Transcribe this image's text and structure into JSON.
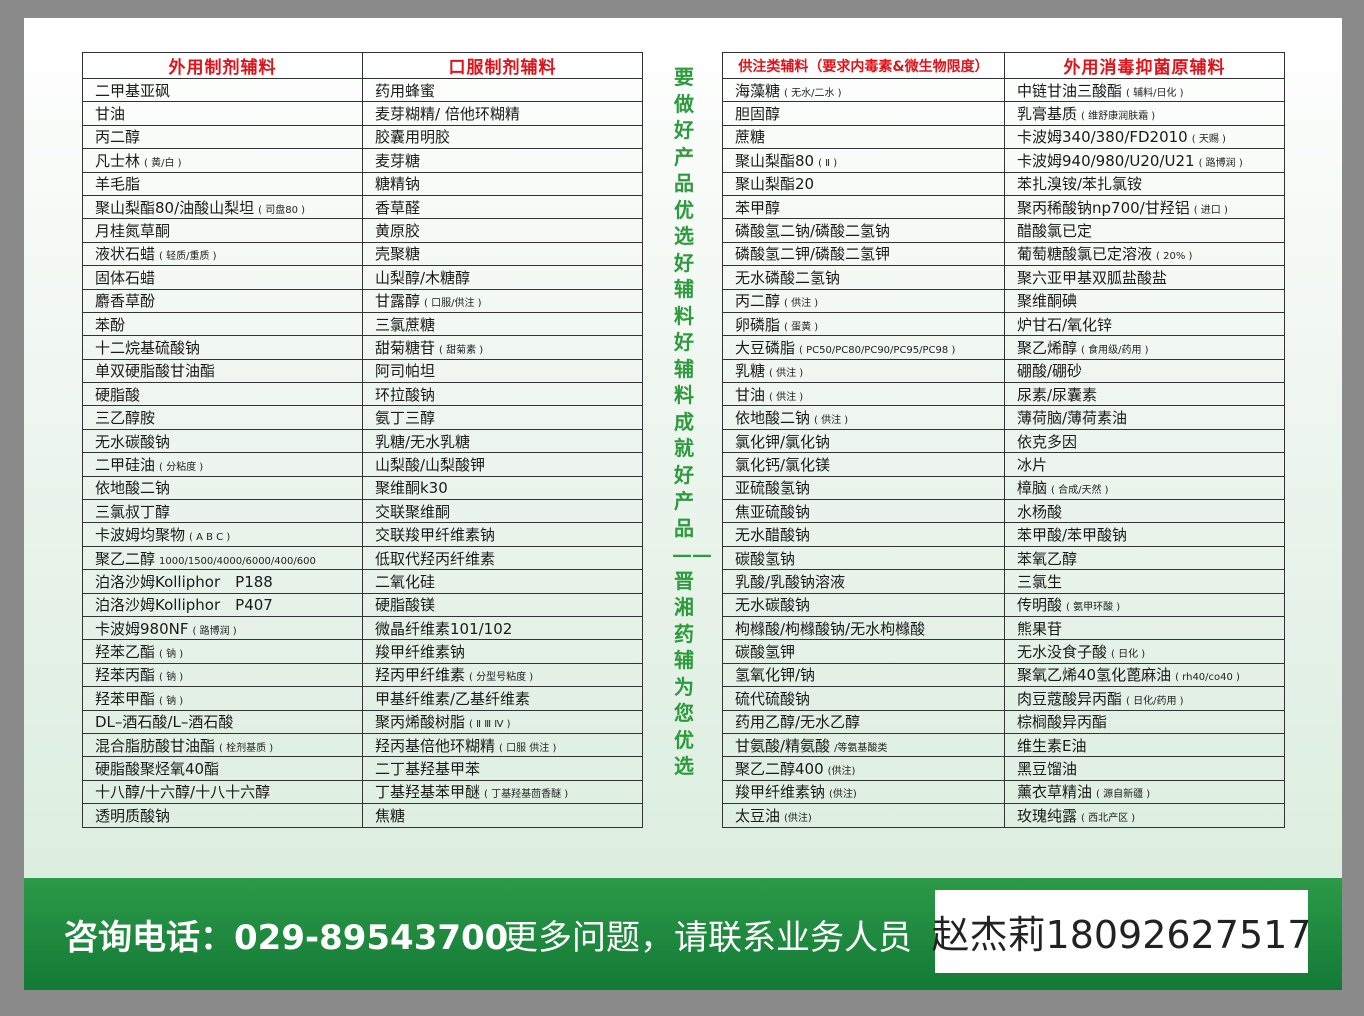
{
  "colors": {
    "header_text": "#e0131a",
    "slogan": "#2e9a3e",
    "footer_bg": "#1a8a3e"
  },
  "left_table": {
    "headers": [
      "外用制剂辅料",
      "口服制剂辅料"
    ],
    "rows": [
      [
        [
          "二甲基亚砜",
          ""
        ],
        [
          "药用蜂蜜",
          ""
        ]
      ],
      [
        [
          "甘油",
          ""
        ],
        [
          "麦芽糊精/ 倍他环糊精",
          ""
        ]
      ],
      [
        [
          "丙二醇",
          ""
        ],
        [
          "胶囊用明胶",
          ""
        ]
      ],
      [
        [
          "凡士林",
          "( 黄/白 )"
        ],
        [
          "麦芽糖",
          ""
        ]
      ],
      [
        [
          "羊毛脂",
          ""
        ],
        [
          "糖精钠",
          ""
        ]
      ],
      [
        [
          "聚山梨酯80/油酸山梨坦",
          "( 司盘80 )"
        ],
        [
          "香草醛",
          ""
        ]
      ],
      [
        [
          "月桂氮草酮",
          ""
        ],
        [
          "黄原胶",
          ""
        ]
      ],
      [
        [
          "液状石蜡",
          "( 轻质/重质 )"
        ],
        [
          "壳聚糖",
          ""
        ]
      ],
      [
        [
          "固体石蜡",
          ""
        ],
        [
          "山梨醇/木糖醇",
          ""
        ]
      ],
      [
        [
          "麝香草酚",
          ""
        ],
        [
          "甘露醇",
          "( 口服/供注 )"
        ]
      ],
      [
        [
          "苯酚",
          ""
        ],
        [
          "三氯蔗糖",
          ""
        ]
      ],
      [
        [
          "十二烷基硫酸钠",
          ""
        ],
        [
          "甜菊糖苷",
          "( 甜菊素 )"
        ]
      ],
      [
        [
          "单双硬脂酸甘油酯",
          ""
        ],
        [
          "阿司帕坦",
          ""
        ]
      ],
      [
        [
          "硬脂酸",
          ""
        ],
        [
          "环拉酸钠",
          ""
        ]
      ],
      [
        [
          "三乙醇胺",
          ""
        ],
        [
          "氨丁三醇",
          ""
        ]
      ],
      [
        [
          "无水碳酸钠",
          ""
        ],
        [
          "乳糖/无水乳糖",
          ""
        ]
      ],
      [
        [
          "二甲硅油",
          "( 分粘度 )"
        ],
        [
          "山梨酸/山梨酸钾",
          ""
        ]
      ],
      [
        [
          "依地酸二钠",
          ""
        ],
        [
          "聚维酮k30",
          ""
        ]
      ],
      [
        [
          "三氯叔丁醇",
          ""
        ],
        [
          "交联聚维酮",
          ""
        ]
      ],
      [
        [
          "卡波姆均聚物",
          "( A B C )"
        ],
        [
          "交联羧甲纤维素钠",
          ""
        ]
      ],
      [
        [
          "聚乙二醇",
          "1000/1500/4000/6000/400/600"
        ],
        [
          "低取代羟丙纤维素",
          ""
        ]
      ],
      [
        [
          "泊洛沙姆Kolliphor　P188",
          ""
        ],
        [
          "二氧化硅",
          ""
        ]
      ],
      [
        [
          "泊洛沙姆Kolliphor　P407",
          ""
        ],
        [
          "硬脂酸镁",
          ""
        ]
      ],
      [
        [
          "卡波姆980NF",
          "( 路博润 )"
        ],
        [
          "微晶纤维素101/102",
          ""
        ]
      ],
      [
        [
          "羟苯乙酯",
          "( 钠 )"
        ],
        [
          "羧甲纤维素钠",
          ""
        ]
      ],
      [
        [
          "羟苯丙酯",
          "( 钠 )"
        ],
        [
          "羟丙甲纤维素",
          "( 分型号粘度 )"
        ]
      ],
      [
        [
          "羟苯甲酯",
          "( 钠 )"
        ],
        [
          "甲基纤维素/乙基纤维素",
          ""
        ]
      ],
      [
        [
          "DL–酒石酸/L–酒石酸",
          ""
        ],
        [
          "聚丙烯酸树脂",
          "( Ⅱ Ⅲ Ⅳ )"
        ]
      ],
      [
        [
          "混合脂肪酸甘油酯",
          "( 栓剂基质 )"
        ],
        [
          "羟丙基倍他环糊精",
          "( 口服 供注 )"
        ]
      ],
      [
        [
          "硬脂酸聚烃氧40酯",
          ""
        ],
        [
          "二丁基羟基甲苯",
          ""
        ]
      ],
      [
        [
          "十八醇/十六醇/十八十六醇",
          ""
        ],
        [
          "丁基羟基苯甲醚",
          "( 丁基羟基茴香醚 )"
        ]
      ],
      [
        [
          "透明质酸钠",
          ""
        ],
        [
          "焦糖",
          ""
        ]
      ]
    ]
  },
  "right_table": {
    "headers": [
      "供注类辅料（要求内毒素&微生物限度）",
      "外用消毒抑菌原辅料"
    ],
    "rows": [
      [
        [
          "海藻糖",
          "( 无水/二水 )"
        ],
        [
          "中链甘油三酸酯",
          "( 辅料/日化 )"
        ]
      ],
      [
        [
          "胆固醇",
          ""
        ],
        [
          "乳膏基质",
          "( 维舒康润肤霜 )"
        ]
      ],
      [
        [
          "蔗糖",
          ""
        ],
        [
          "卡波姆340/380/FD2010",
          "( 天赐 )"
        ]
      ],
      [
        [
          "聚山梨酯80",
          "( Ⅱ )"
        ],
        [
          "卡波姆940/980/U20/U21",
          "( 路博润 )"
        ]
      ],
      [
        [
          "聚山梨酯20",
          ""
        ],
        [
          "苯扎溴铵/苯扎氯铵",
          ""
        ]
      ],
      [
        [
          "苯甲醇",
          ""
        ],
        [
          "聚丙稀酸钠np700/甘羟铝",
          "( 进口 )"
        ]
      ],
      [
        [
          "磷酸氢二钠/磷酸二氢钠",
          ""
        ],
        [
          "醋酸氯已定",
          ""
        ]
      ],
      [
        [
          "磷酸氢二钾/磷酸二氢钾",
          ""
        ],
        [
          "葡萄糖酸氯已定溶液",
          "( 20% )"
        ]
      ],
      [
        [
          "无水磷酸二氢钠",
          ""
        ],
        [
          "聚六亚甲基双胍盐酸盐",
          ""
        ]
      ],
      [
        [
          "丙二醇",
          "( 供注 )"
        ],
        [
          "聚维酮碘",
          ""
        ]
      ],
      [
        [
          "卵磷脂",
          "( 蛋黄 )"
        ],
        [
          "炉甘石/氧化锌",
          ""
        ]
      ],
      [
        [
          "大豆磷脂",
          "( PC50/PC80/PC90/PC95/PC98 )"
        ],
        [
          "聚乙烯醇",
          "( 食用级/药用 )"
        ]
      ],
      [
        [
          "乳糖",
          "( 供注 )"
        ],
        [
          "硼酸/硼砂",
          ""
        ]
      ],
      [
        [
          "甘油",
          "( 供注 )"
        ],
        [
          "尿素/尿囊素",
          ""
        ]
      ],
      [
        [
          "依地酸二钠",
          "( 供注 )"
        ],
        [
          "薄荷脑/薄荷素油",
          ""
        ]
      ],
      [
        [
          "氯化钾/氯化钠",
          ""
        ],
        [
          "依克多因",
          ""
        ]
      ],
      [
        [
          "氯化钙/氯化镁",
          ""
        ],
        [
          "冰片",
          ""
        ]
      ],
      [
        [
          "亚硫酸氢钠",
          ""
        ],
        [
          "樟脑",
          "( 合成/天然 )"
        ]
      ],
      [
        [
          "焦亚硫酸钠",
          ""
        ],
        [
          "水杨酸",
          ""
        ]
      ],
      [
        [
          "无水醋酸钠",
          ""
        ],
        [
          "苯甲酸/苯甲酸钠",
          ""
        ]
      ],
      [
        [
          "碳酸氢钠",
          ""
        ],
        [
          "苯氧乙醇",
          ""
        ]
      ],
      [
        [
          "乳酸/乳酸钠溶液",
          ""
        ],
        [
          "三氯生",
          ""
        ]
      ],
      [
        [
          "无水碳酸钠",
          ""
        ],
        [
          "传明酸",
          "( 氨甲环酸 )"
        ]
      ],
      [
        [
          "枸橼酸/枸橼酸钠/无水枸橼酸",
          ""
        ],
        [
          "熊果苷",
          ""
        ]
      ],
      [
        [
          "碳酸氢钾",
          ""
        ],
        [
          "无水没食子酸",
          "( 日化 )"
        ]
      ],
      [
        [
          "氢氧化钾/钠",
          ""
        ],
        [
          "聚氧乙烯40氢化蓖麻油",
          "( rh40/co40 )"
        ]
      ],
      [
        [
          "硫代硫酸钠",
          ""
        ],
        [
          "肉豆蔻酸异丙酯",
          "( 日化/药用 )"
        ]
      ],
      [
        [
          "药用乙醇/无水乙醇",
          ""
        ],
        [
          "棕榈酸异丙酯",
          ""
        ]
      ],
      [
        [
          "甘氨酸/精氨酸",
          "/等氨基酸类"
        ],
        [
          "维生素E油",
          ""
        ]
      ],
      [
        [
          "聚乙二醇400",
          "(供注)"
        ],
        [
          "黑豆馏油",
          ""
        ]
      ],
      [
        [
          "羧甲纤维素钠",
          "(供注)"
        ],
        [
          "薰衣草精油",
          "( 源自新疆 )"
        ]
      ],
      [
        [
          "太豆油",
          "(供注)"
        ],
        [
          "玫瑰纯露",
          "( 西北产区 )"
        ]
      ]
    ]
  },
  "slogan": "要做好产品优选好辅料　好辅料成就好产品——晋湘药辅为您优选",
  "footer": {
    "phone": "咨询电话：029-89543700",
    "more": "更多问题，请联系业务人员",
    "contact": "赵杰莉18092627517"
  }
}
